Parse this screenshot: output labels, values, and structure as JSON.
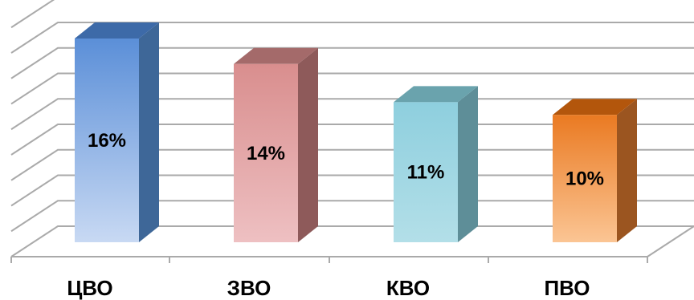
{
  "chart_data": {
    "type": "bar",
    "categories": [
      "ЦВО",
      "ЗВО",
      "КВО",
      "ПВО"
    ],
    "values": [
      16,
      14,
      11,
      10
    ],
    "data_labels": [
      "16%",
      "14%",
      "11%",
      "10%"
    ],
    "value_unit": "%",
    "ylim": [
      0,
      18
    ],
    "grid": true,
    "legend": "none",
    "colors": {
      "front": [
        "#5b8fd8",
        "#d98e8e",
        "#8ecfde",
        "#ea7a22"
      ],
      "front_light": [
        "#c8d9f3",
        "#eec0c2",
        "#b3dfe8",
        "#fbc594"
      ],
      "side": [
        "#3e6798",
        "#8e5a5a",
        "#5e8e98",
        "#9b5520"
      ],
      "top": [
        "#3d6aa8",
        "#a46a6a",
        "#6aa3ad",
        "#b3560c"
      ],
      "grid": "#aaaaaa"
    }
  }
}
